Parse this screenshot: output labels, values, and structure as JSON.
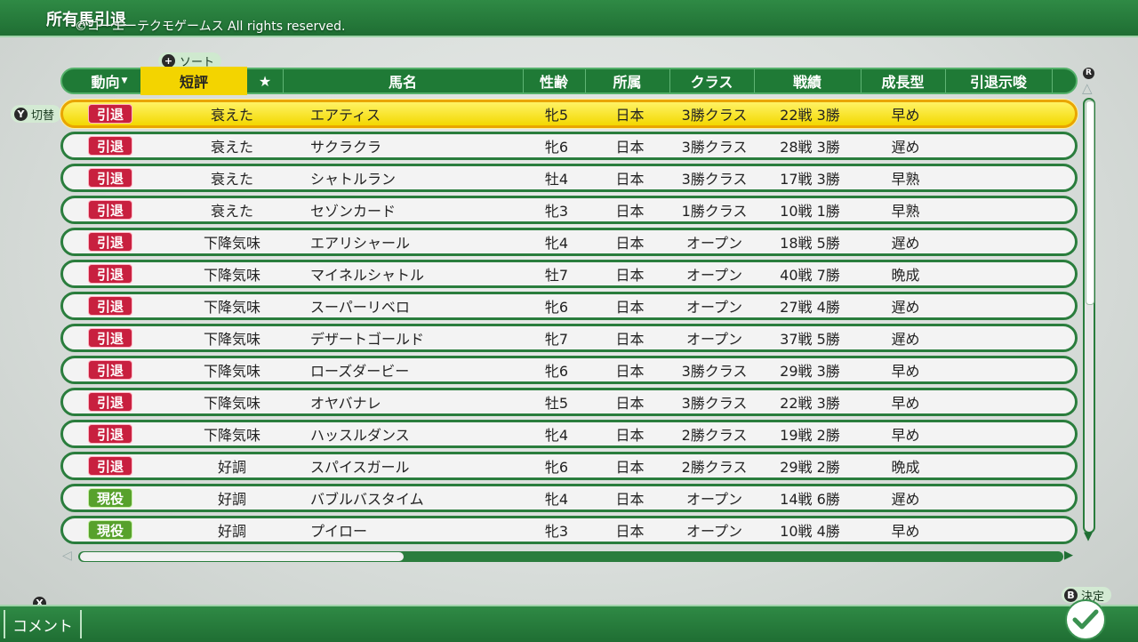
{
  "header": {
    "title": "所有馬引退",
    "copyright": "©コーエーテクモゲームス All rights reserved."
  },
  "hints": {
    "sort_button": "+",
    "sort_label": "ソート",
    "toggle_button": "Y",
    "toggle_label": "切替",
    "r_button": "R",
    "comment_button": "X",
    "comment_label": "コメント",
    "decide_button": "B",
    "decide_label": "決定"
  },
  "columns": {
    "trend": "動向",
    "rating": "短評",
    "favorite": "★",
    "name": "馬名",
    "sex_age": "性齢",
    "affiliation": "所属",
    "class": "クラス",
    "record": "戦績",
    "growth": "成長型",
    "retire_hint": "引退示唆"
  },
  "scroll": {
    "vertical_position": 0.0,
    "horizontal_position": 0.0
  },
  "colors": {
    "retire_badge": "#c8203f",
    "active_badge": "#57a12c",
    "selected_row": "#f3d800",
    "frame_green": "#1f7a36"
  },
  "horses": [
    {
      "status": "引退",
      "status_type": "retire",
      "rating": "衰えた",
      "name": "エアティス",
      "sex_age": "牝5",
      "affiliation": "日本",
      "class": "3勝クラス",
      "record": "22戦 3勝",
      "growth": "早め",
      "selected": true
    },
    {
      "status": "引退",
      "status_type": "retire",
      "rating": "衰えた",
      "name": "サクラクラ",
      "sex_age": "牝6",
      "affiliation": "日本",
      "class": "3勝クラス",
      "record": "28戦 3勝",
      "growth": "遅め"
    },
    {
      "status": "引退",
      "status_type": "retire",
      "rating": "衰えた",
      "name": "シャトルラン",
      "sex_age": "牡4",
      "affiliation": "日本",
      "class": "3勝クラス",
      "record": "17戦 3勝",
      "growth": "早熟"
    },
    {
      "status": "引退",
      "status_type": "retire",
      "rating": "衰えた",
      "name": "セゾンカード",
      "sex_age": "牝3",
      "affiliation": "日本",
      "class": "1勝クラス",
      "record": "10戦 1勝",
      "growth": "早熟"
    },
    {
      "status": "引退",
      "status_type": "retire",
      "rating": "下降気味",
      "name": "エアリシャール",
      "sex_age": "牝4",
      "affiliation": "日本",
      "class": "オープン",
      "record": "18戦 5勝",
      "growth": "遅め"
    },
    {
      "status": "引退",
      "status_type": "retire",
      "rating": "下降気味",
      "name": "マイネルシャトル",
      "sex_age": "牡7",
      "affiliation": "日本",
      "class": "オープン",
      "record": "40戦 7勝",
      "growth": "晩成"
    },
    {
      "status": "引退",
      "status_type": "retire",
      "rating": "下降気味",
      "name": "スーパーリベロ",
      "sex_age": "牝6",
      "affiliation": "日本",
      "class": "オープン",
      "record": "27戦 4勝",
      "growth": "遅め"
    },
    {
      "status": "引退",
      "status_type": "retire",
      "rating": "下降気味",
      "name": "デザートゴールド",
      "sex_age": "牝7",
      "affiliation": "日本",
      "class": "オープン",
      "record": "37戦 5勝",
      "growth": "遅め"
    },
    {
      "status": "引退",
      "status_type": "retire",
      "rating": "下降気味",
      "name": "ローズダービー",
      "sex_age": "牝6",
      "affiliation": "日本",
      "class": "3勝クラス",
      "record": "29戦 3勝",
      "growth": "早め"
    },
    {
      "status": "引退",
      "status_type": "retire",
      "rating": "下降気味",
      "name": "オヤバナレ",
      "sex_age": "牡5",
      "affiliation": "日本",
      "class": "3勝クラス",
      "record": "22戦 3勝",
      "growth": "早め"
    },
    {
      "status": "引退",
      "status_type": "retire",
      "rating": "下降気味",
      "name": "ハッスルダンス",
      "sex_age": "牝4",
      "affiliation": "日本",
      "class": "2勝クラス",
      "record": "19戦 2勝",
      "growth": "早め"
    },
    {
      "status": "引退",
      "status_type": "retire",
      "rating": "好調",
      "name": "スパイスガール",
      "sex_age": "牝6",
      "affiliation": "日本",
      "class": "2勝クラス",
      "record": "29戦 2勝",
      "growth": "晩成"
    },
    {
      "status": "現役",
      "status_type": "active",
      "rating": "好調",
      "name": "バブルバスタイム",
      "sex_age": "牝4",
      "affiliation": "日本",
      "class": "オープン",
      "record": "14戦 6勝",
      "growth": "遅め"
    },
    {
      "status": "現役",
      "status_type": "active",
      "rating": "好調",
      "name": "プイロー",
      "sex_age": "牝3",
      "affiliation": "日本",
      "class": "オープン",
      "record": "10戦 4勝",
      "growth": "早め"
    }
  ]
}
